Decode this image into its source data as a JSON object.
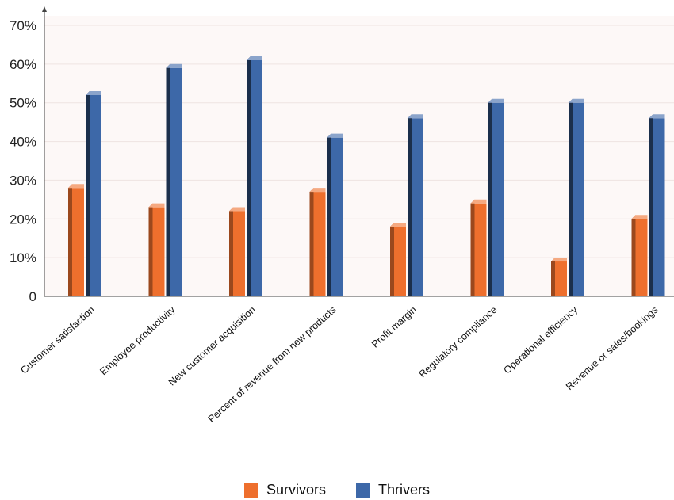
{
  "chart_data": {
    "type": "bar",
    "categories": [
      "Customer satisfaction",
      "Employee productivity",
      "New customer acquisition",
      "Percent of revenue from new products",
      "Profit margin",
      "Regulatory compliance",
      "Operational efficiency",
      "Revenue or sales/bookings"
    ],
    "series": [
      {
        "name": "Survivors",
        "color": "#ee6f2d",
        "values": [
          28,
          23,
          22,
          27,
          18,
          24,
          9,
          20
        ]
      },
      {
        "name": "Thrivers",
        "color": "#3d68a8",
        "values": [
          52,
          59,
          61,
          41,
          46,
          50,
          50,
          46
        ]
      }
    ],
    "yticks": [
      "0",
      "10%",
      "20%",
      "30%",
      "40%",
      "50%",
      "60%",
      "70%"
    ],
    "ylim": [
      0,
      70
    ],
    "title": "",
    "xlabel": "",
    "ylabel": "",
    "legend_position": "bottom",
    "grid": true
  }
}
